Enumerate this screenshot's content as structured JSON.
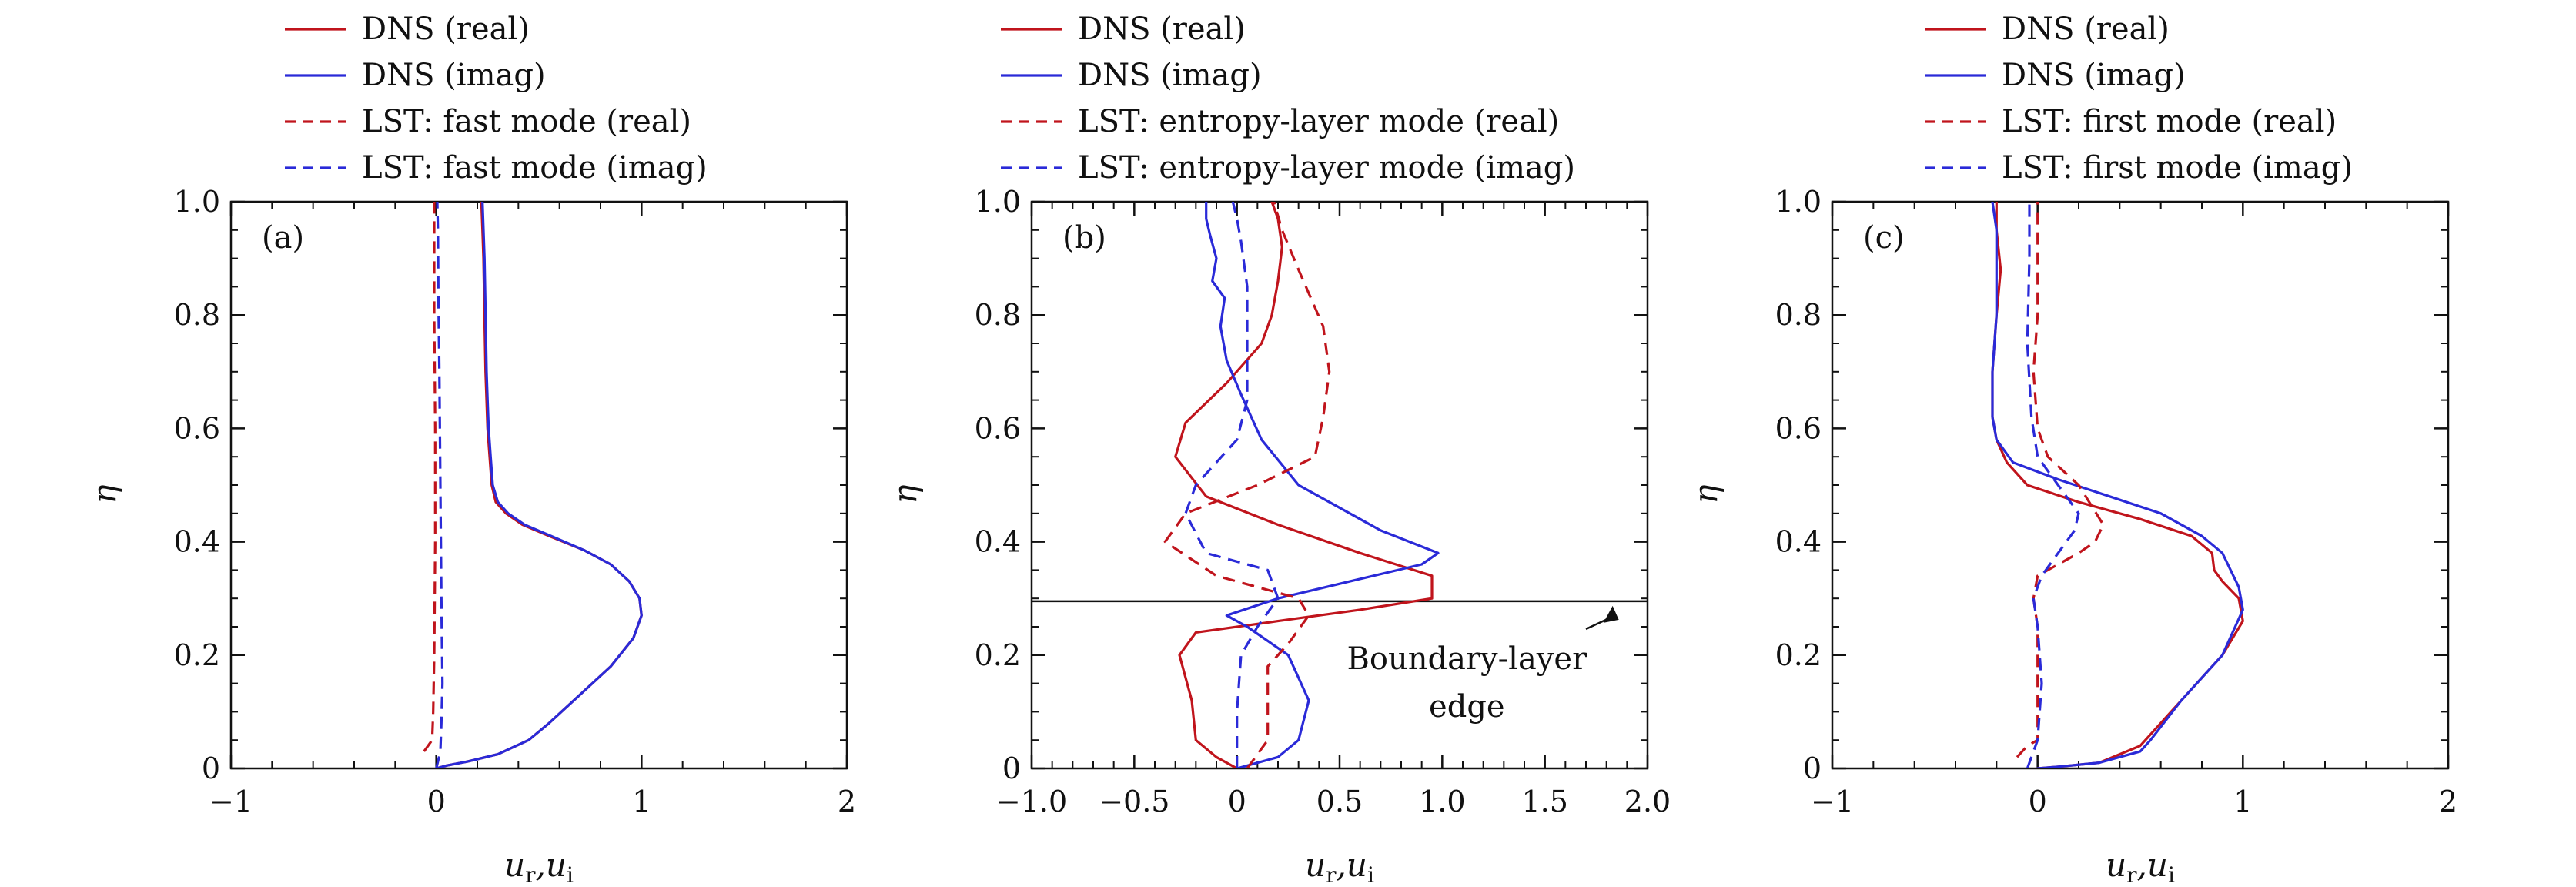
{
  "chart_data": [
    {
      "type": "line",
      "panel_label": "(a)",
      "xlabel": "u_r, u_i",
      "ylabel": "η",
      "xlim": [
        -1,
        2
      ],
      "ylim": [
        0,
        1
      ],
      "xticks": [
        -1,
        0,
        1,
        2
      ],
      "xtick_labels": [
        "−1",
        "0",
        "1",
        "2"
      ],
      "yticks": [
        0,
        0.2,
        0.4,
        0.6,
        0.8,
        1.0
      ],
      "ytick_labels": [
        "0",
        "0.2",
        "0.4",
        "0.6",
        "0.8",
        "1.0"
      ],
      "grid": false,
      "legend_position": "above",
      "series": [
        {
          "name": "DNS (real)",
          "color": "#c0141c",
          "dash": "solid",
          "x": [
            0.0,
            0.05,
            0.15,
            0.3,
            0.45,
            0.55,
            0.7,
            0.85,
            0.96,
            1.0,
            0.99,
            0.94,
            0.85,
            0.72,
            0.55,
            0.42,
            0.34,
            0.29,
            0.27,
            0.26,
            0.25,
            0.245,
            0.24,
            0.235,
            0.23,
            0.225,
            0.22
          ],
          "y": [
            0.0,
            0.005,
            0.012,
            0.025,
            0.05,
            0.08,
            0.13,
            0.18,
            0.23,
            0.27,
            0.3,
            0.33,
            0.36,
            0.385,
            0.41,
            0.43,
            0.45,
            0.47,
            0.5,
            0.55,
            0.6,
            0.65,
            0.7,
            0.8,
            0.9,
            0.95,
            1.0
          ]
        },
        {
          "name": "DNS (imag)",
          "color": "#2a2ad8",
          "dash": "solid",
          "x": [
            0.0,
            0.05,
            0.15,
            0.3,
            0.45,
            0.55,
            0.7,
            0.85,
            0.96,
            1.0,
            0.99,
            0.94,
            0.85,
            0.72,
            0.56,
            0.43,
            0.35,
            0.3,
            0.275,
            0.265,
            0.255,
            0.25,
            0.245,
            0.24,
            0.235,
            0.23,
            0.225
          ],
          "y": [
            0.0,
            0.005,
            0.012,
            0.025,
            0.05,
            0.08,
            0.13,
            0.18,
            0.23,
            0.27,
            0.3,
            0.33,
            0.36,
            0.385,
            0.41,
            0.43,
            0.45,
            0.47,
            0.5,
            0.55,
            0.6,
            0.65,
            0.7,
            0.8,
            0.9,
            0.95,
            1.0
          ]
        },
        {
          "name": "LST: fast mode (real)",
          "color": "#c0141c",
          "dash": "dashed",
          "x": [
            -0.06,
            -0.04,
            -0.02,
            -0.015,
            -0.01,
            -0.005,
            -0.005,
            -0.01,
            -0.01,
            -0.01
          ],
          "y": [
            0.03,
            0.04,
            0.05,
            0.1,
            0.2,
            0.4,
            0.6,
            0.8,
            0.9,
            1.0
          ]
        },
        {
          "name": "LST: fast mode (imag)",
          "color": "#2a2ad8",
          "dash": "dashed",
          "x": [
            0.0,
            0.02,
            0.025,
            0.03,
            0.025,
            0.02,
            0.015,
            0.01,
            0.008,
            0.005
          ],
          "y": [
            0.0,
            0.03,
            0.08,
            0.15,
            0.3,
            0.5,
            0.7,
            0.85,
            0.95,
            1.0
          ]
        }
      ]
    },
    {
      "type": "line",
      "panel_label": "(b)",
      "xlabel": "u_r, u_i",
      "ylabel": "η",
      "xlim": [
        -1.0,
        2.0
      ],
      "ylim": [
        0,
        1
      ],
      "xticks": [
        -1.0,
        -0.5,
        0,
        0.5,
        1.0,
        1.5,
        2.0
      ],
      "xtick_labels": [
        "−1.0",
        "−0.5",
        "0",
        "0.5",
        "1.0",
        "1.5",
        "2.0"
      ],
      "yticks": [
        0,
        0.2,
        0.4,
        0.6,
        0.8,
        1.0
      ],
      "ytick_labels": [
        "0",
        "0.2",
        "0.4",
        "0.6",
        "0.8",
        "1.0"
      ],
      "grid": false,
      "legend_position": "above",
      "hline": {
        "y": 0.295
      },
      "annotation": {
        "lines": [
          "Boundary-layer",
          "edge"
        ],
        "arrow_to": {
          "x": 1.83,
          "y": 0.295
        },
        "arrow_from": {
          "x": 1.7,
          "y": 0.235
        }
      },
      "series": [
        {
          "name": "DNS (real)",
          "color": "#c0141c",
          "dash": "solid",
          "x": [
            0.0,
            -0.1,
            -0.2,
            -0.22,
            -0.28,
            -0.2,
            0.2,
            0.6,
            0.95,
            0.95,
            0.6,
            0.2,
            -0.15,
            -0.3,
            -0.25,
            -0.05,
            0.12,
            0.17,
            0.2,
            0.22,
            0.2,
            0.17
          ],
          "y": [
            0.0,
            0.02,
            0.05,
            0.12,
            0.2,
            0.24,
            0.26,
            0.28,
            0.3,
            0.34,
            0.38,
            0.43,
            0.48,
            0.55,
            0.61,
            0.68,
            0.75,
            0.8,
            0.86,
            0.92,
            0.97,
            1.0
          ]
        },
        {
          "name": "DNS (imag)",
          "color": "#2a2ad8",
          "dash": "solid",
          "x": [
            0.0,
            0.2,
            0.3,
            0.35,
            0.25,
            0.05,
            -0.05,
            0.2,
            0.55,
            0.9,
            0.98,
            0.7,
            0.3,
            0.12,
            0.02,
            -0.05,
            -0.08,
            -0.06,
            -0.12,
            -0.1,
            -0.13,
            -0.15,
            -0.15
          ],
          "y": [
            0.0,
            0.02,
            0.05,
            0.12,
            0.2,
            0.25,
            0.27,
            0.3,
            0.33,
            0.36,
            0.38,
            0.42,
            0.5,
            0.58,
            0.66,
            0.72,
            0.78,
            0.83,
            0.86,
            0.9,
            0.94,
            0.97,
            1.0
          ]
        },
        {
          "name": "LST: entropy-layer mode (real)",
          "color": "#c0141c",
          "dash": "dashed",
          "x": [
            0.05,
            0.15,
            0.15,
            0.25,
            0.35,
            0.3,
            -0.1,
            -0.35,
            -0.25,
            0.1,
            0.38,
            0.42,
            0.45,
            0.42,
            0.3,
            0.22,
            0.18
          ],
          "y": [
            0.0,
            0.05,
            0.18,
            0.22,
            0.27,
            0.3,
            0.34,
            0.4,
            0.45,
            0.5,
            0.55,
            0.62,
            0.7,
            0.78,
            0.88,
            0.95,
            1.0
          ]
        },
        {
          "name": "LST: entropy-layer mode (imag)",
          "color": "#2a2ad8",
          "dash": "dashed",
          "x": [
            0.0,
            0.0,
            0.02,
            0.1,
            0.2,
            0.15,
            -0.15,
            -0.25,
            -0.2,
            0.0,
            0.05,
            0.05,
            0.05,
            0.02,
            0.0,
            -0.02
          ],
          "y": [
            0.0,
            0.1,
            0.2,
            0.25,
            0.3,
            0.35,
            0.38,
            0.45,
            0.5,
            0.58,
            0.65,
            0.75,
            0.85,
            0.93,
            0.97,
            1.0
          ]
        }
      ]
    },
    {
      "type": "line",
      "panel_label": "(c)",
      "xlabel": "u_r, u_i",
      "ylabel": "η",
      "xlim": [
        -1,
        2
      ],
      "ylim": [
        0,
        1
      ],
      "xticks": [
        -1,
        0,
        1,
        2
      ],
      "xtick_labels": [
        "−1",
        "0",
        "1",
        "2"
      ],
      "yticks": [
        0,
        0.2,
        0.4,
        0.6,
        0.8,
        1.0
      ],
      "ytick_labels": [
        "0",
        "0.2",
        "0.4",
        "0.6",
        "0.8",
        "1.0"
      ],
      "grid": false,
      "legend_position": "above",
      "series": [
        {
          "name": "DNS (real)",
          "color": "#c0141c",
          "dash": "solid",
          "x": [
            0.0,
            0.1,
            0.3,
            0.5,
            0.7,
            0.9,
            1.0,
            0.98,
            0.9,
            0.86,
            0.85,
            0.75,
            0.5,
            0.2,
            -0.05,
            -0.15,
            -0.2,
            -0.22,
            -0.22,
            -0.2,
            -0.18,
            -0.2,
            -0.2
          ],
          "y": [
            0.0,
            0.003,
            0.01,
            0.04,
            0.12,
            0.2,
            0.26,
            0.3,
            0.33,
            0.35,
            0.38,
            0.41,
            0.44,
            0.47,
            0.5,
            0.54,
            0.58,
            0.62,
            0.7,
            0.8,
            0.88,
            0.95,
            1.0
          ]
        },
        {
          "name": "DNS (imag)",
          "color": "#2a2ad8",
          "dash": "solid",
          "x": [
            0.0,
            0.1,
            0.3,
            0.5,
            0.55,
            0.7,
            0.9,
            1.0,
            0.98,
            0.9,
            0.8,
            0.6,
            0.35,
            0.1,
            -0.12,
            -0.2,
            -0.22,
            -0.22,
            -0.2,
            -0.2,
            -0.2,
            -0.22
          ],
          "y": [
            0.0,
            0.003,
            0.01,
            0.03,
            0.05,
            0.12,
            0.2,
            0.28,
            0.32,
            0.38,
            0.41,
            0.45,
            0.48,
            0.51,
            0.54,
            0.58,
            0.62,
            0.7,
            0.8,
            0.88,
            0.95,
            1.0
          ]
        },
        {
          "name": "LST: first mode (real)",
          "color": "#c0141c",
          "dash": "dashed",
          "x": [
            -0.1,
            -0.05,
            0.0,
            0.0,
            0.0,
            -0.02,
            0.0,
            0.1,
            0.2,
            0.28,
            0.32,
            0.2,
            0.05,
            0.0,
            -0.02,
            0.0,
            0.0,
            0.0
          ],
          "y": [
            0.02,
            0.04,
            0.05,
            0.15,
            0.25,
            0.3,
            0.34,
            0.36,
            0.38,
            0.4,
            0.43,
            0.5,
            0.55,
            0.6,
            0.7,
            0.8,
            0.9,
            1.0
          ]
        },
        {
          "name": "LST: first mode (imag)",
          "color": "#2a2ad8",
          "dash": "dashed",
          "x": [
            -0.05,
            0.0,
            0.02,
            0.0,
            -0.02,
            0.02,
            0.1,
            0.18,
            0.2,
            0.1,
            0.0,
            -0.03,
            -0.05,
            -0.04,
            -0.04
          ],
          "y": [
            0.0,
            0.05,
            0.15,
            0.25,
            0.3,
            0.34,
            0.38,
            0.42,
            0.45,
            0.5,
            0.55,
            0.62,
            0.75,
            0.9,
            1.0
          ]
        }
      ]
    }
  ]
}
